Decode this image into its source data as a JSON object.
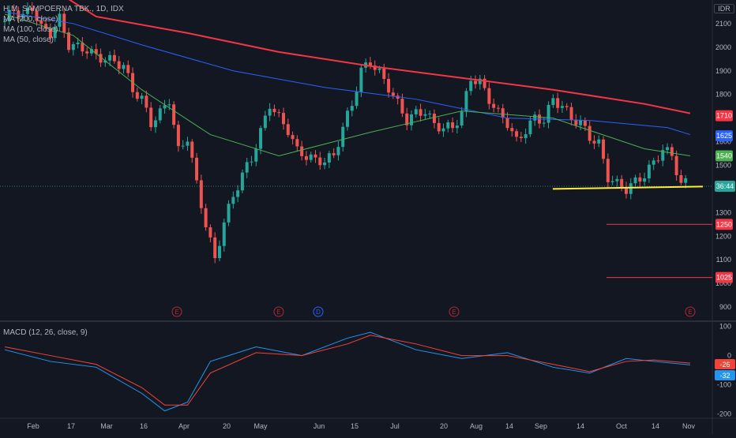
{
  "header": {
    "symbol": "H.M. SAMPOERNA TBK., 1D, IDX",
    "currency": "IDR",
    "ma200": "MA (200, close)",
    "ma100": "MA (100, close)",
    "ma50": "MA (50, close)",
    "macd": "MACD (12, 26, close, 9)"
  },
  "colors": {
    "background": "#131722",
    "up": "#26a69a",
    "down": "#ef5350",
    "ma200": "#f23645",
    "ma100": "#2962ff",
    "ma50": "#4caf50",
    "support": "#ffeb3b",
    "macd": "#2196f3",
    "signal": "#f44336"
  },
  "chart_data": [
    {
      "type": "candlestick",
      "title": "H.M. SAMPOERNA TBK., 1D, IDX",
      "ylim": [
        850,
        2200
      ],
      "y_ticks": [
        900,
        1000,
        1100,
        1200,
        1300,
        1400,
        1500,
        1600,
        1700,
        1800,
        1900,
        2000,
        2100
      ],
      "x_ticks": [
        "Feb",
        "17",
        "Mar",
        "16",
        "Apr",
        "20",
        "May",
        "Jun",
        "15",
        "Jul",
        "20",
        "Aug",
        "14",
        "Sep",
        "14",
        "Oct",
        "14",
        "Nov"
      ],
      "candles_close_path": [
        [
          0,
          2110
        ],
        [
          2,
          2160
        ],
        [
          4,
          2130
        ],
        [
          6,
          2170
        ],
        [
          8,
          2080
        ],
        [
          10,
          2060
        ],
        [
          12,
          2120
        ],
        [
          14,
          2010
        ],
        [
          16,
          2000
        ],
        [
          18,
          1990
        ],
        [
          20,
          1960
        ],
        [
          22,
          1950
        ],
        [
          24,
          1940
        ],
        [
          26,
          1920
        ],
        [
          28,
          1820
        ],
        [
          30,
          1780
        ],
        [
          32,
          1680
        ],
        [
          34,
          1720
        ],
        [
          36,
          1780
        ],
        [
          38,
          1560
        ],
        [
          40,
          1620
        ],
        [
          42,
          1420
        ],
        [
          44,
          1250
        ],
        [
          46,
          1100
        ],
        [
          48,
          1260
        ],
        [
          50,
          1370
        ],
        [
          52,
          1460
        ],
        [
          54,
          1530
        ],
        [
          56,
          1640
        ],
        [
          58,
          1760
        ],
        [
          60,
          1700
        ],
        [
          62,
          1650
        ],
        [
          64,
          1560
        ],
        [
          66,
          1540
        ],
        [
          68,
          1520
        ],
        [
          70,
          1520
        ],
        [
          72,
          1540
        ],
        [
          74,
          1660
        ],
        [
          76,
          1760
        ],
        [
          78,
          1900
        ],
        [
          80,
          1940
        ],
        [
          82,
          1890
        ],
        [
          84,
          1830
        ],
        [
          86,
          1760
        ],
        [
          88,
          1690
        ],
        [
          90,
          1720
        ],
        [
          92,
          1730
        ],
        [
          94,
          1670
        ],
        [
          96,
          1660
        ],
        [
          98,
          1660
        ],
        [
          100,
          1720
        ],
        [
          102,
          1870
        ],
        [
          104,
          1850
        ],
        [
          106,
          1780
        ],
        [
          108,
          1720
        ],
        [
          110,
          1680
        ],
        [
          112,
          1600
        ],
        [
          114,
          1650
        ],
        [
          116,
          1700
        ],
        [
          118,
          1690
        ],
        [
          120,
          1780
        ],
        [
          122,
          1750
        ],
        [
          124,
          1700
        ],
        [
          126,
          1680
        ],
        [
          128,
          1620
        ],
        [
          130,
          1590
        ],
        [
          132,
          1450
        ],
        [
          134,
          1420
        ],
        [
          136,
          1400
        ],
        [
          138,
          1430
        ],
        [
          140,
          1460
        ],
        [
          142,
          1510
        ],
        [
          144,
          1570
        ],
        [
          146,
          1540
        ],
        [
          148,
          1420
        ],
        [
          150,
          1430
        ]
      ],
      "series": [
        {
          "name": "MA (200, close)",
          "values": [
            [
              11,
              2240
            ],
            [
              20,
              2130
            ],
            [
              40,
              2060
            ],
            [
              60,
              1980
            ],
            [
              80,
              1920
            ],
            [
              100,
              1870
            ],
            [
              120,
              1820
            ],
            [
              140,
              1760
            ],
            [
              150,
              1720
            ]
          ]
        },
        {
          "name": "MA (100, close)",
          "values": [
            [
              0,
              2150
            ],
            [
              15,
              2100
            ],
            [
              30,
              2010
            ],
            [
              50,
              1900
            ],
            [
              70,
              1830
            ],
            [
              90,
              1780
            ],
            [
              110,
              1700
            ],
            [
              128,
              1690
            ],
            [
              145,
              1660
            ],
            [
              150,
              1630
            ]
          ]
        },
        {
          "name": "MA (50, close)",
          "values": [
            [
              0,
              2140
            ],
            [
              15,
              2050
            ],
            [
              30,
              1820
            ],
            [
              45,
              1630
            ],
            [
              60,
              1540
            ],
            [
              80,
              1640
            ],
            [
              100,
              1730
            ],
            [
              120,
              1700
            ],
            [
              140,
              1570
            ],
            [
              150,
              1540
            ]
          ]
        }
      ],
      "horizontal_levels": [
        {
          "label": "1710",
          "value": 1710,
          "color": "#f23645"
        },
        {
          "label": "1625",
          "value": 1625,
          "color": "#2962ff"
        },
        {
          "label": "1540",
          "value": 1540,
          "color": "#4caf50"
        },
        {
          "label": "1250",
          "value": 1250,
          "color": "#f23645"
        },
        {
          "label": "1025",
          "value": 1025,
          "color": "#f23645"
        }
      ],
      "support_line": {
        "from": [
          122,
          1400
        ],
        "to": [
          150,
          1410
        ]
      },
      "current_price_tag": "36:44",
      "event_markers": [
        "E",
        "E",
        "D",
        "E",
        "E"
      ]
    },
    {
      "type": "line",
      "title": "MACD (12, 26, close, 9)",
      "ylim": [
        -210,
        110
      ],
      "y_ticks": [
        -200,
        -100,
        0,
        100
      ],
      "series": [
        {
          "name": "MACD",
          "values": [
            [
              0,
              20
            ],
            [
              10,
              -20
            ],
            [
              20,
              -40
            ],
            [
              30,
              -130
            ],
            [
              35,
              -190
            ],
            [
              40,
              -160
            ],
            [
              45,
              -20
            ],
            [
              55,
              30
            ],
            [
              65,
              0
            ],
            [
              75,
              60
            ],
            [
              80,
              80
            ],
            [
              90,
              20
            ],
            [
              100,
              -10
            ],
            [
              110,
              10
            ],
            [
              120,
              -40
            ],
            [
              128,
              -60
            ],
            [
              136,
              -10
            ],
            [
              142,
              -20
            ],
            [
              150,
              -32
            ]
          ]
        },
        {
          "name": "Signal",
          "values": [
            [
              0,
              30
            ],
            [
              10,
              0
            ],
            [
              20,
              -30
            ],
            [
              30,
              -110
            ],
            [
              35,
              -170
            ],
            [
              40,
              -170
            ],
            [
              45,
              -60
            ],
            [
              55,
              10
            ],
            [
              65,
              0
            ],
            [
              75,
              40
            ],
            [
              80,
              70
            ],
            [
              90,
              40
            ],
            [
              100,
              0
            ],
            [
              110,
              0
            ],
            [
              120,
              -30
            ],
            [
              128,
              -55
            ],
            [
              136,
              -20
            ],
            [
              142,
              -15
            ],
            [
              150,
              -26
            ]
          ]
        }
      ],
      "tags": [
        {
          "label": "-26",
          "color": "#f44336"
        },
        {
          "label": "-32",
          "color": "#2196f3"
        }
      ]
    }
  ]
}
